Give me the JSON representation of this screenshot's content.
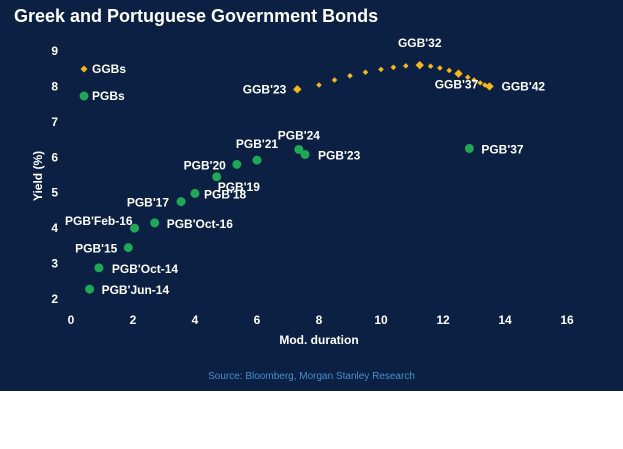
{
  "title": "Greek and Portuguese Government Bonds",
  "source": "Source:  Bloomberg, Morgan Stanley Research",
  "colors": {
    "background": "#0b2042",
    "ggb": "#f5b81c",
    "pgb": "#1fa855",
    "text": "#ffffff",
    "source": "#4a8fd0"
  },
  "chart_data": {
    "type": "scatter",
    "title": "Greek and Portuguese Government Bonds",
    "xlabel": "Mod. duration",
    "ylabel": "Yield (%)",
    "xlim": [
      0,
      16
    ],
    "ylim": [
      2,
      9
    ],
    "xticks": [
      "0",
      "2",
      "4",
      "6",
      "8",
      "10",
      "12",
      "14",
      "16"
    ],
    "yticks": [
      "2",
      "3",
      "4",
      "5",
      "6",
      "7",
      "8",
      "9"
    ],
    "grid": false,
    "legend": {
      "position": "top-left",
      "entries": [
        {
          "name": "GGBs",
          "marker": "diamond",
          "color": "#f5b81c"
        },
        {
          "name": "PGBs",
          "marker": "circle",
          "color": "#1fa855"
        }
      ]
    },
    "series": [
      {
        "name": "GGBs",
        "marker": "diamond",
        "color": "#f5b81c",
        "points": [
          {
            "x": 7.3,
            "y": 7.92,
            "label": "GGB'23"
          },
          {
            "x": 8.0,
            "y": 8.04,
            "label": ""
          },
          {
            "x": 8.5,
            "y": 8.18,
            "label": ""
          },
          {
            "x": 9.0,
            "y": 8.3,
            "label": ""
          },
          {
            "x": 9.5,
            "y": 8.4,
            "label": ""
          },
          {
            "x": 10.0,
            "y": 8.48,
            "label": ""
          },
          {
            "x": 10.4,
            "y": 8.54,
            "label": ""
          },
          {
            "x": 10.8,
            "y": 8.58,
            "label": ""
          },
          {
            "x": 11.25,
            "y": 8.6,
            "label": "GGB'32"
          },
          {
            "x": 11.6,
            "y": 8.57,
            "label": ""
          },
          {
            "x": 11.9,
            "y": 8.52,
            "label": ""
          },
          {
            "x": 12.2,
            "y": 8.45,
            "label": ""
          },
          {
            "x": 12.5,
            "y": 8.36,
            "label": "GGB'37"
          },
          {
            "x": 12.8,
            "y": 8.26,
            "label": ""
          },
          {
            "x": 13.0,
            "y": 8.18,
            "label": ""
          },
          {
            "x": 13.2,
            "y": 8.1,
            "label": ""
          },
          {
            "x": 13.35,
            "y": 8.04,
            "label": ""
          },
          {
            "x": 13.5,
            "y": 8.0,
            "label": "GGB'42"
          }
        ]
      },
      {
        "name": "PGBs",
        "marker": "circle",
        "color": "#1fa855",
        "points": [
          {
            "x": 0.6,
            "y": 2.28,
            "label": "PGB'Jun-14"
          },
          {
            "x": 0.9,
            "y": 2.88,
            "label": "PGB'Oct-14"
          },
          {
            "x": 1.85,
            "y": 3.45,
            "label": "PGB'15"
          },
          {
            "x": 2.05,
            "y": 4.0,
            "label": "PGB'Feb-16"
          },
          {
            "x": 2.7,
            "y": 4.15,
            "label": "PGB'Oct-16"
          },
          {
            "x": 3.55,
            "y": 4.75,
            "label": "PGB'17"
          },
          {
            "x": 4.0,
            "y": 4.98,
            "label": "PGB'18"
          },
          {
            "x": 4.7,
            "y": 5.45,
            "label": "PGB'19"
          },
          {
            "x": 5.35,
            "y": 5.8,
            "label": "PGB'20"
          },
          {
            "x": 6.0,
            "y": 5.92,
            "label": "PGB'21"
          },
          {
            "x": 7.35,
            "y": 6.22,
            "label": "PGB'24"
          },
          {
            "x": 7.55,
            "y": 6.08,
            "label": "PGB'23"
          },
          {
            "x": 12.85,
            "y": 6.25,
            "label": "PGB'37"
          }
        ]
      }
    ]
  }
}
